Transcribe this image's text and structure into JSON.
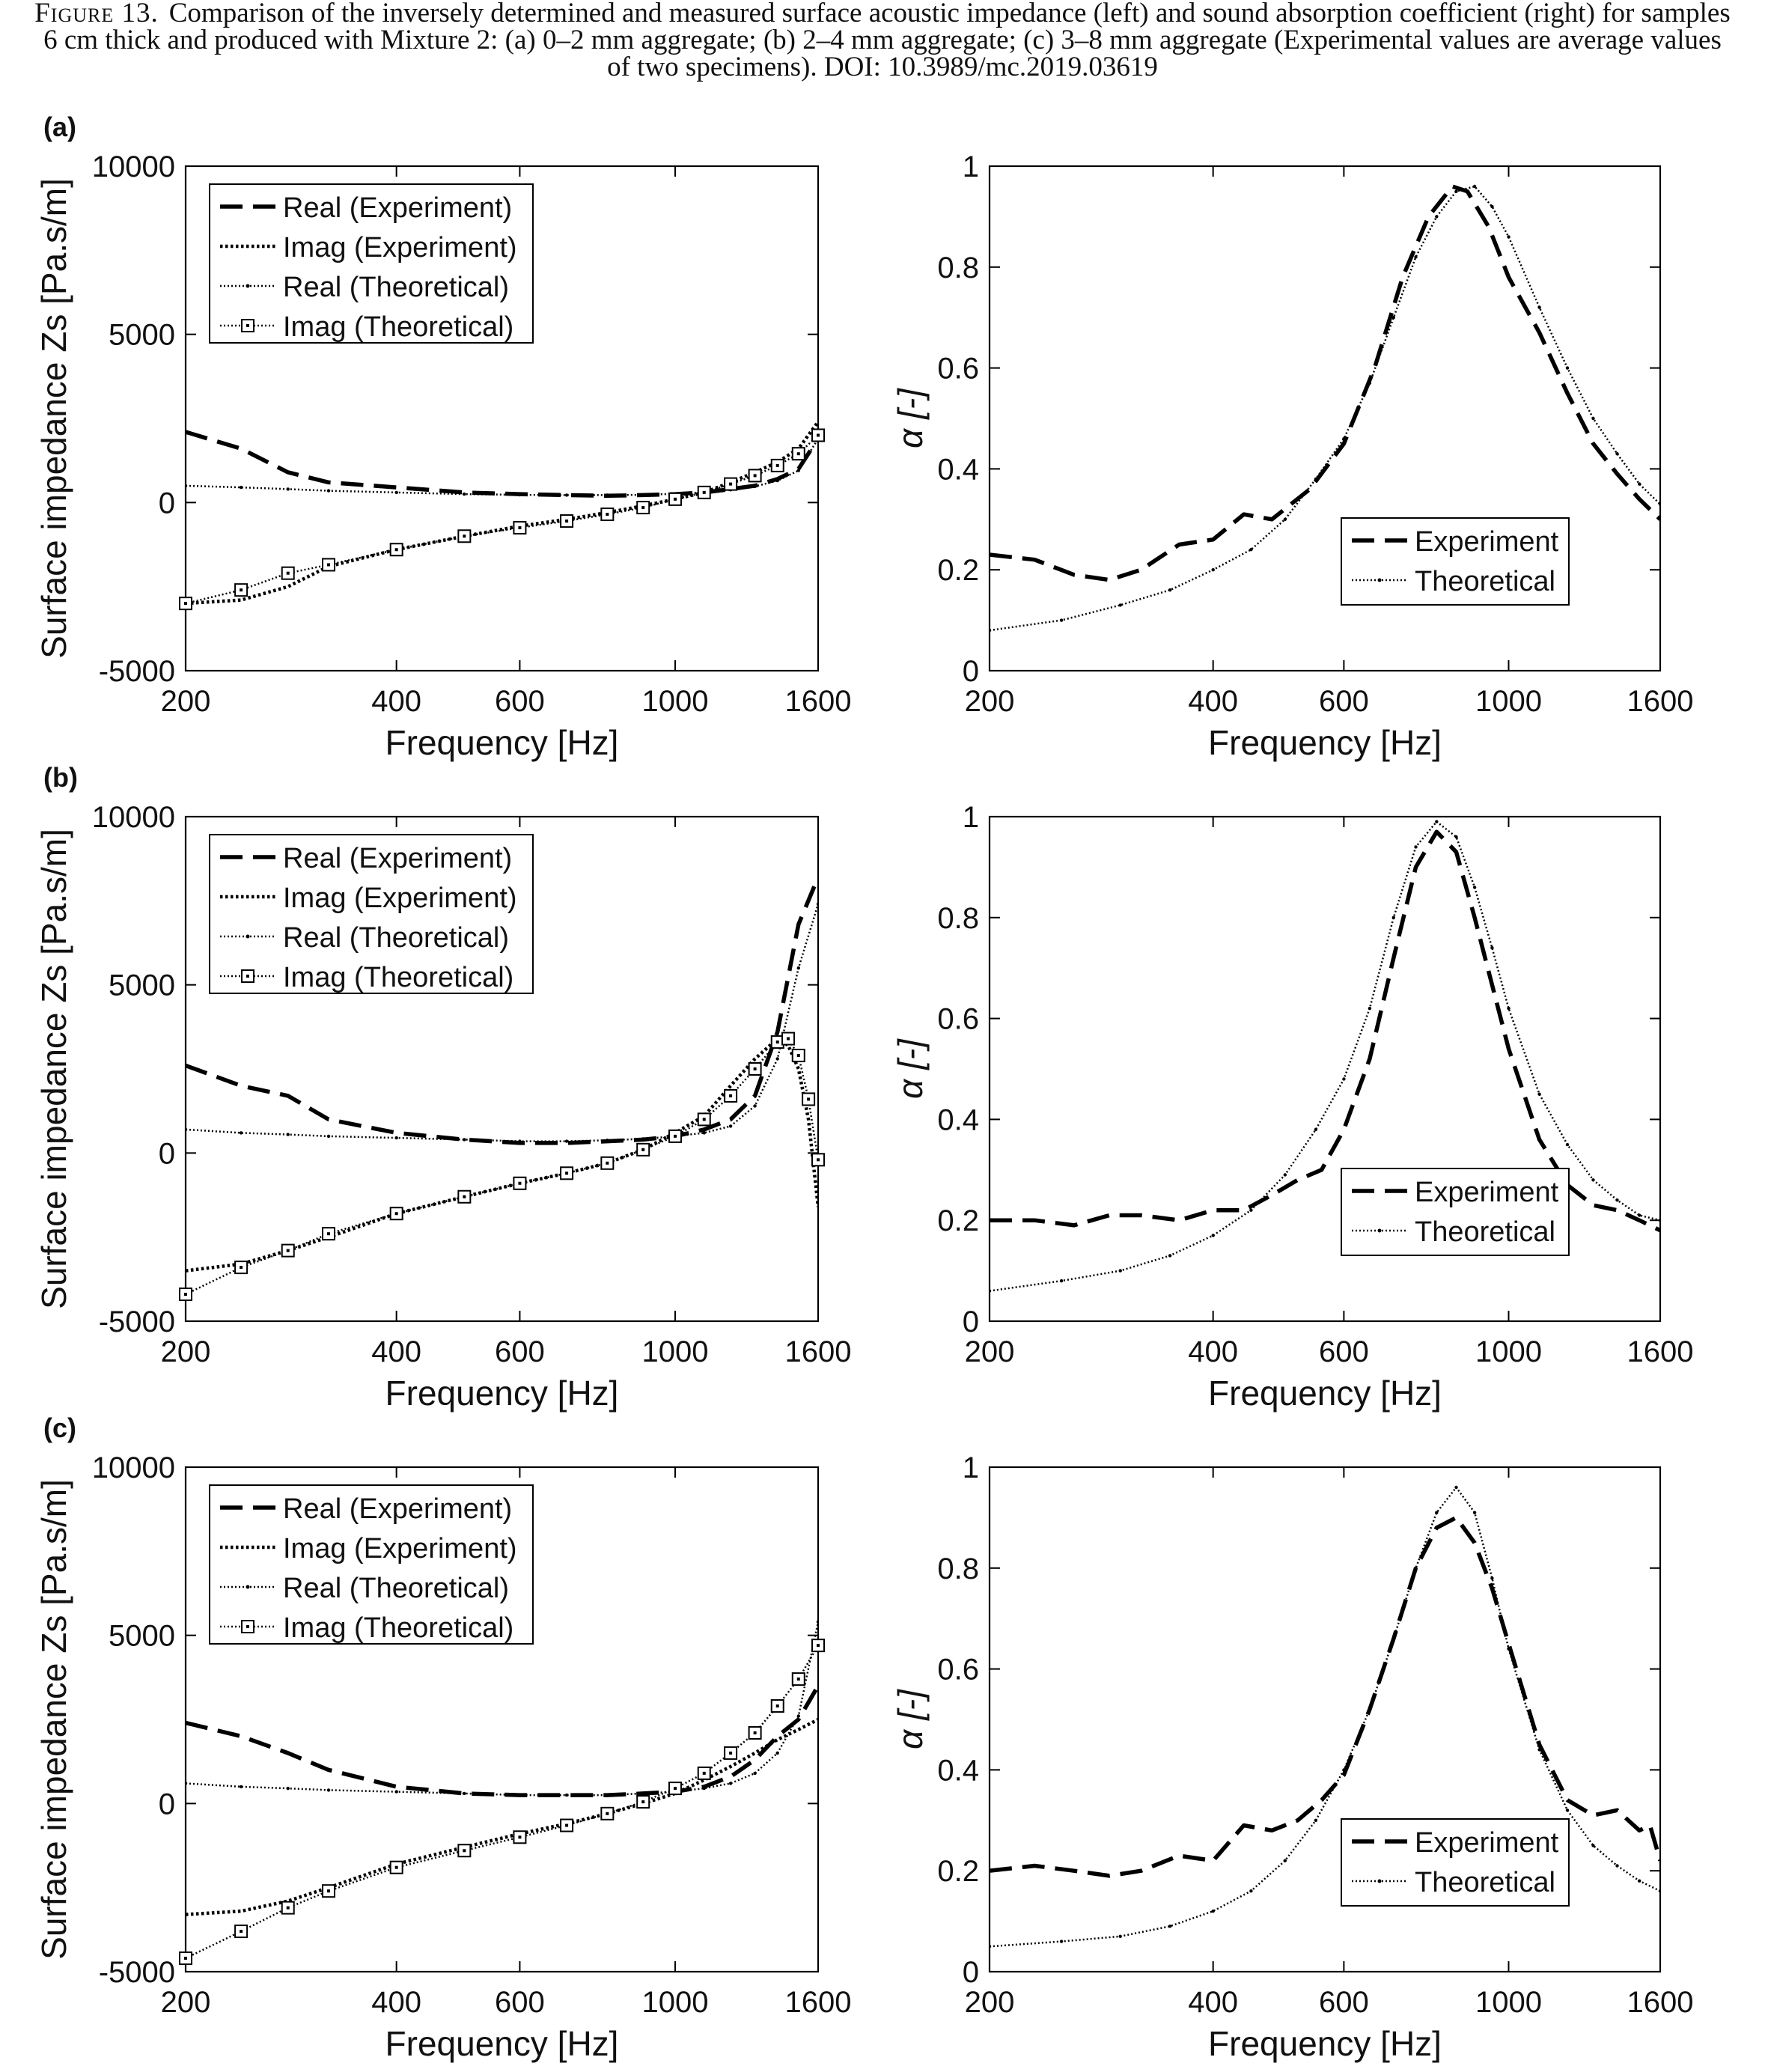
{
  "caption": {
    "figure_label": "Figure 13.",
    "text": "Comparison of the inversely determined and measured surface acoustic impedance (left) and sound absorption coefficient (right) for samples 6 cm thick and produced with Mixture 2: (a) 0–2 mm aggregate; (b) 2–4 mm aggregate; (c) 3–8 mm aggregate (Experimental values are average values of two specimens). DOI: 10.3989/mc.2019.03619"
  },
  "chart_data": [
    {
      "panel": "(a)",
      "side": "left",
      "type": "line",
      "xlabel": "Frequency [Hz]",
      "ylabel": "Surface impedance Zs [Pa.s/m]",
      "x_scale": "log",
      "xlim": [
        200,
        1600
      ],
      "ylim": [
        -5000,
        10000
      ],
      "x_ticks": [
        200,
        400,
        600,
        1000,
        1600
      ],
      "y_ticks": [
        -5000,
        0,
        5000,
        10000
      ],
      "legend_position": "top-left",
      "series": [
        {
          "name": "Real (Experiment)",
          "style": "dashed",
          "x": [
            200,
            240,
            280,
            320,
            400,
            500,
            600,
            700,
            800,
            900,
            1000,
            1100,
            1200,
            1300,
            1400,
            1500,
            1600
          ],
          "y": [
            2100,
            1600,
            900,
            600,
            450,
            300,
            250,
            220,
            200,
            220,
            250,
            300,
            400,
            500,
            700,
            1000,
            1900
          ]
        },
        {
          "name": "Imag (Experiment)",
          "style": "dotted",
          "x": [
            200,
            240,
            280,
            320,
            400,
            500,
            600,
            700,
            800,
            900,
            1000,
            1100,
            1200,
            1300,
            1400,
            1500,
            1600
          ],
          "y": [
            -3000,
            -2900,
            -2500,
            -1900,
            -1400,
            -1000,
            -700,
            -500,
            -300,
            -100,
            100,
            300,
            600,
            900,
            1200,
            1600,
            2400
          ]
        },
        {
          "name": "Real (Theoretical)",
          "style": "dotted-dot",
          "x": [
            200,
            240,
            280,
            320,
            400,
            500,
            600,
            700,
            800,
            900,
            1000,
            1100,
            1200,
            1300,
            1400,
            1500,
            1600
          ],
          "y": [
            500,
            450,
            400,
            350,
            300,
            250,
            230,
            220,
            220,
            230,
            260,
            300,
            380,
            480,
            650,
            950,
            1900
          ]
        },
        {
          "name": "Imag (Theoretical)",
          "style": "dotted-square",
          "x": [
            200,
            240,
            280,
            320,
            400,
            500,
            600,
            700,
            800,
            900,
            1000,
            1100,
            1200,
            1300,
            1400,
            1500,
            1600
          ],
          "y": [
            -3000,
            -2600,
            -2100,
            -1850,
            -1400,
            -1000,
            -750,
            -550,
            -350,
            -150,
            100,
            300,
            550,
            800,
            1100,
            1450,
            2000
          ]
        }
      ]
    },
    {
      "panel": "(a)",
      "side": "right",
      "type": "line",
      "xlabel": "Frequency [Hz]",
      "ylabel": "α [-]",
      "x_scale": "log",
      "xlim": [
        200,
        1600
      ],
      "ylim": [
        0,
        1
      ],
      "x_ticks": [
        200,
        400,
        600,
        1000,
        1600
      ],
      "y_ticks": [
        0,
        0.2,
        0.4,
        0.6,
        0.8,
        1
      ],
      "legend_position": "bottom-right",
      "series": [
        {
          "name": "Experiment",
          "style": "dashed",
          "x": [
            200,
            230,
            260,
            290,
            320,
            360,
            400,
            440,
            480,
            540,
            600,
            660,
            720,
            780,
            840,
            880,
            940,
            1000,
            1100,
            1200,
            1300,
            1400,
            1500,
            1600
          ],
          "y": [
            0.23,
            0.22,
            0.19,
            0.18,
            0.2,
            0.25,
            0.26,
            0.31,
            0.3,
            0.36,
            0.45,
            0.6,
            0.78,
            0.9,
            0.96,
            0.95,
            0.88,
            0.78,
            0.67,
            0.55,
            0.45,
            0.39,
            0.34,
            0.3
          ]
        },
        {
          "name": "Theoretical",
          "style": "dotted-dot",
          "x": [
            200,
            250,
            300,
            350,
            400,
            450,
            500,
            550,
            600,
            650,
            700,
            750,
            800,
            850,
            900,
            950,
            1000,
            1100,
            1200,
            1300,
            1400,
            1500,
            1600
          ],
          "y": [
            0.08,
            0.1,
            0.13,
            0.16,
            0.2,
            0.24,
            0.3,
            0.38,
            0.46,
            0.57,
            0.7,
            0.82,
            0.9,
            0.95,
            0.96,
            0.92,
            0.86,
            0.72,
            0.6,
            0.5,
            0.43,
            0.37,
            0.33
          ]
        }
      ]
    },
    {
      "panel": "(b)",
      "side": "left",
      "type": "line",
      "xlabel": "Frequency [Hz]",
      "ylabel": "Surface impedance Zs [Pa.s/m]",
      "x_scale": "log",
      "xlim": [
        200,
        1600
      ],
      "ylim": [
        -5000,
        10000
      ],
      "x_ticks": [
        200,
        400,
        600,
        1000,
        1600
      ],
      "y_ticks": [
        -5000,
        0,
        5000,
        10000
      ],
      "legend_position": "top-left",
      "series": [
        {
          "name": "Real (Experiment)",
          "style": "dashed",
          "x": [
            200,
            240,
            280,
            320,
            400,
            500,
            600,
            700,
            800,
            900,
            1000,
            1100,
            1200,
            1300,
            1400,
            1500,
            1600
          ],
          "y": [
            2600,
            2000,
            1700,
            1000,
            600,
            400,
            300,
            300,
            350,
            400,
            500,
            700,
            1000,
            1700,
            3600,
            6800,
            8200
          ]
        },
        {
          "name": "Imag (Experiment)",
          "style": "dotted",
          "x": [
            200,
            240,
            280,
            320,
            400,
            500,
            600,
            700,
            800,
            900,
            1000,
            1100,
            1200,
            1300,
            1400,
            1450,
            1500,
            1550,
            1600
          ],
          "y": [
            -3500,
            -3300,
            -2900,
            -2500,
            -1800,
            -1300,
            -900,
            -600,
            -300,
            100,
            600,
            1100,
            2000,
            2800,
            3400,
            3200,
            2500,
            1000,
            -1600
          ]
        },
        {
          "name": "Real (Theoretical)",
          "style": "dotted-dot",
          "x": [
            200,
            240,
            280,
            320,
            400,
            500,
            600,
            700,
            800,
            900,
            1000,
            1100,
            1200,
            1300,
            1400,
            1500,
            1600
          ],
          "y": [
            700,
            600,
            550,
            500,
            450,
            400,
            350,
            350,
            380,
            420,
            500,
            600,
            800,
            1400,
            2800,
            5500,
            7400
          ]
        },
        {
          "name": "Imag (Theoretical)",
          "style": "dotted-square",
          "x": [
            200,
            240,
            280,
            320,
            400,
            500,
            600,
            700,
            800,
            900,
            1000,
            1100,
            1200,
            1300,
            1400,
            1450,
            1500,
            1550,
            1600
          ],
          "y": [
            -4200,
            -3400,
            -2900,
            -2400,
            -1800,
            -1300,
            -900,
            -600,
            -300,
            100,
            500,
            1000,
            1700,
            2500,
            3300,
            3400,
            2900,
            1600,
            -200
          ]
        }
      ]
    },
    {
      "panel": "(b)",
      "side": "right",
      "type": "line",
      "xlabel": "Frequency [Hz]",
      "ylabel": "α [-]",
      "x_scale": "log",
      "xlim": [
        200,
        1600
      ],
      "ylim": [
        0,
        1
      ],
      "x_ticks": [
        200,
        400,
        600,
        1000,
        1600
      ],
      "y_ticks": [
        0,
        0.2,
        0.4,
        0.6,
        0.8,
        1
      ],
      "legend_position": "bottom-right",
      "series": [
        {
          "name": "Experiment",
          "style": "dashed",
          "x": [
            200,
            230,
            260,
            290,
            320,
            360,
            400,
            440,
            480,
            520,
            560,
            600,
            650,
            700,
            750,
            800,
            850,
            900,
            1000,
            1100,
            1200,
            1300,
            1400,
            1500,
            1600
          ],
          "y": [
            0.2,
            0.2,
            0.19,
            0.21,
            0.21,
            0.2,
            0.22,
            0.22,
            0.25,
            0.28,
            0.3,
            0.38,
            0.52,
            0.72,
            0.9,
            0.97,
            0.93,
            0.8,
            0.54,
            0.36,
            0.27,
            0.23,
            0.22,
            0.2,
            0.18
          ]
        },
        {
          "name": "Theoretical",
          "style": "dotted-dot",
          "x": [
            200,
            250,
            300,
            350,
            400,
            450,
            500,
            550,
            600,
            650,
            700,
            750,
            800,
            850,
            900,
            950,
            1000,
            1100,
            1200,
            1300,
            1400,
            1500,
            1600
          ],
          "y": [
            0.06,
            0.08,
            0.1,
            0.13,
            0.17,
            0.22,
            0.29,
            0.38,
            0.48,
            0.62,
            0.8,
            0.94,
            0.99,
            0.96,
            0.86,
            0.74,
            0.62,
            0.45,
            0.35,
            0.28,
            0.24,
            0.21,
            0.2
          ]
        }
      ]
    },
    {
      "panel": "(c)",
      "side": "left",
      "type": "line",
      "xlabel": "Frequency [Hz]",
      "ylabel": "Surface impedance Zs [Pa.s/m]",
      "x_scale": "log",
      "xlim": [
        200,
        1600
      ],
      "ylim": [
        -5000,
        10000
      ],
      "x_ticks": [
        200,
        400,
        600,
        1000,
        1600
      ],
      "y_ticks": [
        -5000,
        0,
        5000,
        10000
      ],
      "legend_position": "top-left",
      "series": [
        {
          "name": "Real (Experiment)",
          "style": "dashed",
          "x": [
            200,
            240,
            280,
            320,
            400,
            500,
            600,
            700,
            800,
            900,
            1000,
            1100,
            1200,
            1300,
            1400,
            1500,
            1600
          ],
          "y": [
            2400,
            2000,
            1500,
            1000,
            500,
            300,
            250,
            250,
            250,
            300,
            350,
            500,
            800,
            1300,
            2000,
            2500,
            3500
          ]
        },
        {
          "name": "Imag (Experiment)",
          "style": "dotted",
          "x": [
            200,
            240,
            280,
            320,
            400,
            500,
            600,
            700,
            800,
            900,
            1000,
            1100,
            1200,
            1300,
            1400,
            1500,
            1600
          ],
          "y": [
            -3300,
            -3200,
            -2900,
            -2500,
            -1800,
            -1300,
            -900,
            -600,
            -300,
            0,
            300,
            700,
            1100,
            1500,
            1900,
            2200,
            2500
          ]
        },
        {
          "name": "Real (Theoretical)",
          "style": "dotted-dot",
          "x": [
            200,
            240,
            280,
            320,
            400,
            500,
            600,
            700,
            800,
            900,
            1000,
            1100,
            1200,
            1300,
            1400,
            1500,
            1600
          ],
          "y": [
            600,
            500,
            450,
            400,
            350,
            300,
            250,
            250,
            250,
            300,
            350,
            450,
            600,
            900,
            1500,
            2600,
            5400
          ]
        },
        {
          "name": "Imag (Theoretical)",
          "style": "dotted-square",
          "x": [
            200,
            240,
            280,
            320,
            400,
            500,
            600,
            700,
            800,
            900,
            1000,
            1100,
            1200,
            1300,
            1400,
            1500,
            1600
          ],
          "y": [
            -4600,
            -3800,
            -3100,
            -2600,
            -1900,
            -1400,
            -1000,
            -650,
            -300,
            50,
            450,
            900,
            1500,
            2100,
            2900,
            3700,
            4700
          ]
        }
      ]
    },
    {
      "panel": "(c)",
      "side": "right",
      "type": "line",
      "xlabel": "Frequency [Hz]",
      "ylabel": "α [-]",
      "x_scale": "log",
      "xlim": [
        200,
        1600
      ],
      "ylim": [
        0,
        1
      ],
      "x_ticks": [
        200,
        400,
        600,
        1000,
        1600
      ],
      "y_ticks": [
        0,
        0.2,
        0.4,
        0.6,
        0.8,
        1
      ],
      "legend_position": "bottom-right",
      "series": [
        {
          "name": "Experiment",
          "style": "dashed",
          "x": [
            200,
            230,
            260,
            290,
            320,
            360,
            400,
            440,
            480,
            520,
            560,
            600,
            650,
            700,
            750,
            800,
            850,
            900,
            950,
            1000,
            1100,
            1200,
            1300,
            1400,
            1500,
            1550,
            1600
          ],
          "y": [
            0.2,
            0.21,
            0.2,
            0.19,
            0.2,
            0.23,
            0.22,
            0.29,
            0.28,
            0.3,
            0.34,
            0.39,
            0.52,
            0.66,
            0.8,
            0.88,
            0.9,
            0.85,
            0.76,
            0.65,
            0.45,
            0.34,
            0.31,
            0.32,
            0.28,
            0.29,
            0.22
          ]
        },
        {
          "name": "Theoretical",
          "style": "dotted-dot",
          "x": [
            200,
            250,
            300,
            350,
            400,
            450,
            500,
            550,
            600,
            650,
            700,
            750,
            800,
            850,
            900,
            950,
            1000,
            1100,
            1200,
            1300,
            1400,
            1500,
            1600
          ],
          "y": [
            0.05,
            0.06,
            0.07,
            0.09,
            0.12,
            0.16,
            0.22,
            0.3,
            0.4,
            0.52,
            0.66,
            0.8,
            0.91,
            0.96,
            0.91,
            0.78,
            0.64,
            0.44,
            0.32,
            0.25,
            0.21,
            0.18,
            0.16
          ]
        }
      ]
    }
  ]
}
